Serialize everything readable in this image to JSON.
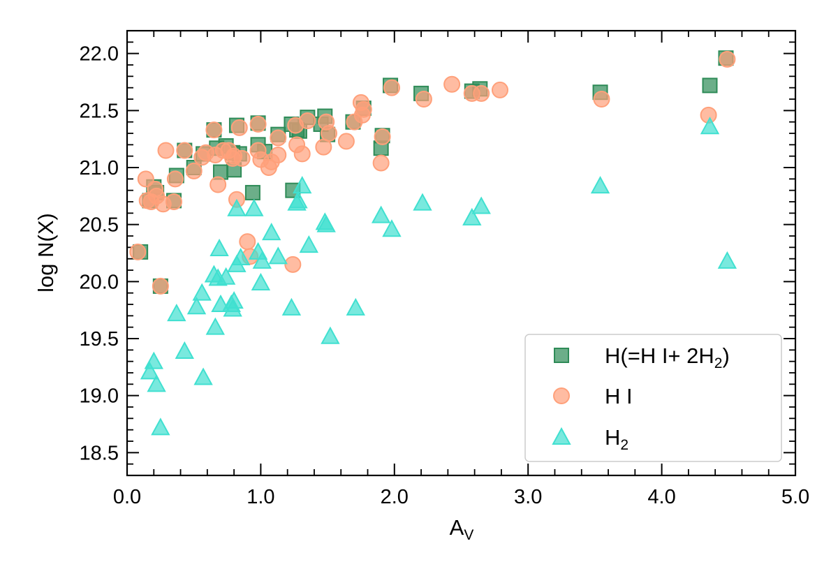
{
  "chart_data": {
    "type": "scatter",
    "xlabel": {
      "main": "A",
      "sub": "V"
    },
    "ylabel": "log N(X)",
    "xlim": [
      0.0,
      5.0
    ],
    "ylim": [
      18.3,
      22.2
    ],
    "x_ticks": [
      0.0,
      1.0,
      2.0,
      3.0,
      4.0,
      5.0
    ],
    "x_tick_labels": [
      "0.0",
      "1.0",
      "2.0",
      "3.0",
      "4.0",
      "5.0"
    ],
    "y_ticks": [
      18.5,
      19.0,
      19.5,
      20.0,
      20.5,
      21.0,
      21.5,
      22.0
    ],
    "y_tick_labels": [
      "18.5",
      "19.0",
      "19.5",
      "20.0",
      "20.5",
      "21.0",
      "21.5",
      "22.0"
    ],
    "grid": false,
    "legend_position": "bottom-right",
    "series": [
      {
        "name": "H(=H I+ 2H2)",
        "label_parts": [
          "H(=H I+ 2H",
          "2",
          ")"
        ],
        "marker": "square",
        "color": "#2e8b57",
        "points": [
          [
            0.1,
            20.26
          ],
          [
            0.17,
            20.71
          ],
          [
            0.2,
            20.83
          ],
          [
            0.22,
            20.78
          ],
          [
            0.25,
            19.96
          ],
          [
            0.35,
            20.71
          ],
          [
            0.37,
            20.93
          ],
          [
            0.43,
            21.15
          ],
          [
            0.5,
            21.0
          ],
          [
            0.57,
            21.12
          ],
          [
            0.65,
            21.33
          ],
          [
            0.67,
            21.17
          ],
          [
            0.7,
            20.96
          ],
          [
            0.74,
            21.19
          ],
          [
            0.79,
            21.13
          ],
          [
            0.8,
            20.98
          ],
          [
            0.82,
            21.37
          ],
          [
            0.84,
            21.12
          ],
          [
            0.94,
            20.78
          ],
          [
            0.98,
            21.39
          ],
          [
            0.98,
            21.2
          ],
          [
            1.03,
            21.14
          ],
          [
            1.13,
            21.29
          ],
          [
            1.23,
            21.38
          ],
          [
            1.24,
            20.8
          ],
          [
            1.27,
            21.33
          ],
          [
            1.29,
            21.32
          ],
          [
            1.35,
            21.44
          ],
          [
            1.45,
            21.38
          ],
          [
            1.48,
            21.45
          ],
          [
            1.5,
            21.29
          ],
          [
            1.69,
            21.4
          ],
          [
            1.77,
            21.52
          ],
          [
            1.9,
            21.17
          ],
          [
            1.91,
            21.28
          ],
          [
            1.97,
            21.72
          ],
          [
            2.2,
            21.65
          ],
          [
            2.58,
            21.67
          ],
          [
            2.64,
            21.69
          ],
          [
            3.54,
            21.66
          ],
          [
            4.36,
            21.72
          ],
          [
            4.48,
            21.96
          ]
        ]
      },
      {
        "name": "H I",
        "label_parts": [
          "H I"
        ],
        "marker": "circle",
        "color": "#ffa07a",
        "points": [
          [
            0.08,
            20.26
          ],
          [
            0.14,
            20.9
          ],
          [
            0.15,
            20.71
          ],
          [
            0.18,
            20.7
          ],
          [
            0.21,
            20.81
          ],
          [
            0.22,
            20.75
          ],
          [
            0.25,
            19.96
          ],
          [
            0.27,
            20.68
          ],
          [
            0.29,
            21.15
          ],
          [
            0.35,
            20.7
          ],
          [
            0.36,
            20.9
          ],
          [
            0.43,
            21.15
          ],
          [
            0.5,
            20.97
          ],
          [
            0.56,
            21.09
          ],
          [
            0.59,
            21.13
          ],
          [
            0.65,
            21.33
          ],
          [
            0.66,
            21.11
          ],
          [
            0.68,
            20.85
          ],
          [
            0.72,
            21.15
          ],
          [
            0.76,
            21.15
          ],
          [
            0.79,
            21.08
          ],
          [
            0.8,
            21.1
          ],
          [
            0.82,
            20.72
          ],
          [
            0.84,
            21.35
          ],
          [
            0.86,
            21.08
          ],
          [
            0.9,
            20.35
          ],
          [
            0.92,
            20.22
          ],
          [
            0.98,
            21.38
          ],
          [
            0.98,
            21.15
          ],
          [
            1.0,
            21.07
          ],
          [
            1.06,
            21.0
          ],
          [
            1.08,
            21.05
          ],
          [
            1.13,
            21.26
          ],
          [
            1.13,
            21.11
          ],
          [
            1.24,
            20.15
          ],
          [
            1.26,
            21.37
          ],
          [
            1.27,
            21.2
          ],
          [
            1.31,
            21.12
          ],
          [
            1.35,
            21.41
          ],
          [
            1.47,
            21.18
          ],
          [
            1.49,
            21.4
          ],
          [
            1.51,
            21.3
          ],
          [
            1.64,
            21.23
          ],
          [
            1.7,
            21.4
          ],
          [
            1.75,
            21.57
          ],
          [
            1.76,
            21.46
          ],
          [
            1.77,
            21.51
          ],
          [
            1.9,
            21.04
          ],
          [
            1.91,
            21.27
          ],
          [
            1.98,
            21.7
          ],
          [
            2.22,
            21.6
          ],
          [
            2.43,
            21.73
          ],
          [
            2.58,
            21.65
          ],
          [
            2.65,
            21.65
          ],
          [
            2.79,
            21.68
          ],
          [
            3.55,
            21.6
          ],
          [
            4.35,
            21.46
          ],
          [
            4.49,
            21.95
          ]
        ]
      },
      {
        "name": "H2",
        "label_parts": [
          "H",
          "2"
        ],
        "marker": "triangle",
        "color": "#40e0d0",
        "points": [
          [
            0.17,
            19.21
          ],
          [
            0.2,
            19.3
          ],
          [
            0.22,
            19.1
          ],
          [
            0.25,
            18.72
          ],
          [
            0.37,
            19.72
          ],
          [
            0.43,
            19.39
          ],
          [
            0.52,
            19.78
          ],
          [
            0.56,
            19.9
          ],
          [
            0.57,
            19.16
          ],
          [
            0.65,
            20.06
          ],
          [
            0.66,
            19.6
          ],
          [
            0.68,
            20.03
          ],
          [
            0.69,
            20.29
          ],
          [
            0.7,
            19.8
          ],
          [
            0.74,
            20.04
          ],
          [
            0.78,
            19.8
          ],
          [
            0.79,
            19.76
          ],
          [
            0.8,
            19.83
          ],
          [
            0.82,
            20.15
          ],
          [
            0.82,
            20.64
          ],
          [
            0.85,
            20.21
          ],
          [
            0.95,
            20.64
          ],
          [
            0.98,
            20.26
          ],
          [
            1.0,
            19.99
          ],
          [
            1.01,
            20.18
          ],
          [
            1.08,
            20.43
          ],
          [
            1.13,
            20.22
          ],
          [
            1.23,
            19.77
          ],
          [
            1.27,
            20.69
          ],
          [
            1.28,
            20.71
          ],
          [
            1.31,
            20.84
          ],
          [
            1.36,
            20.32
          ],
          [
            1.48,
            20.52
          ],
          [
            1.49,
            20.5
          ],
          [
            1.52,
            19.52
          ],
          [
            1.71,
            19.77
          ],
          [
            1.9,
            20.58
          ],
          [
            1.98,
            20.46
          ],
          [
            2.21,
            20.69
          ],
          [
            2.58,
            20.56
          ],
          [
            2.65,
            20.66
          ],
          [
            3.54,
            20.84
          ],
          [
            4.36,
            21.36
          ],
          [
            4.49,
            20.18
          ]
        ]
      }
    ]
  }
}
